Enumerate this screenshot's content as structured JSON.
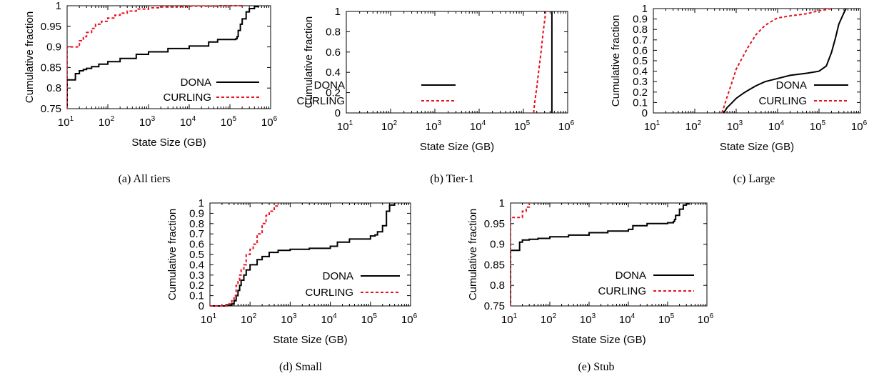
{
  "figure": {
    "legend_dona": "DONA",
    "legend_curling": "CURLING",
    "colors": {
      "dona": "#000000",
      "curling": "#e8111f"
    }
  },
  "chart_data": [
    {
      "id": "a",
      "type": "line",
      "caption": "(a)  All tiers",
      "xlabel": "State Size (GB)",
      "ylabel": "Cumulative fraction",
      "xscale": "log",
      "xlim": [
        10,
        1000000
      ],
      "ylim": [
        0.75,
        1
      ],
      "xtick_exponents": [
        "1",
        "2",
        "3",
        "4",
        "5",
        "6"
      ],
      "yticks": [
        "0.75",
        "0.8",
        "0.85",
        "0.9",
        "0.95",
        "1"
      ],
      "legend_position": "bottom-right",
      "grid": false,
      "series": [
        {
          "name": "DONA",
          "style": "solid",
          "step": true,
          "x": [
            10,
            10,
            16,
            16,
            20,
            20,
            25,
            30,
            40,
            60,
            100,
            200,
            500,
            1000,
            3000,
            10000,
            30000,
            50000,
            140000,
            150000,
            160000,
            180000,
            200000,
            250000,
            300000,
            400000,
            500000
          ],
          "y": [
            0.75,
            0.82,
            0.82,
            0.835,
            0.835,
            0.842,
            0.845,
            0.848,
            0.852,
            0.858,
            0.864,
            0.872,
            0.882,
            0.888,
            0.896,
            0.902,
            0.912,
            0.918,
            0.92,
            0.925,
            0.94,
            0.955,
            0.968,
            0.985,
            0.993,
            0.998,
            1.0
          ]
        },
        {
          "name": "CURLING",
          "style": "dashed",
          "step": true,
          "x": [
            10,
            10,
            20,
            20,
            25,
            30,
            40,
            50,
            70,
            100,
            150,
            200,
            300,
            500,
            1000,
            2000,
            5000,
            10000,
            50000,
            100000,
            200000
          ],
          "y": [
            0.75,
            0.9,
            0.9,
            0.915,
            0.925,
            0.935,
            0.945,
            0.955,
            0.962,
            0.97,
            0.977,
            0.982,
            0.987,
            0.992,
            0.995,
            0.997,
            0.998,
            0.999,
            1.0,
            1.0,
            1.0
          ]
        }
      ]
    },
    {
      "id": "b",
      "type": "line",
      "caption": "(b)  Tier-1",
      "xlabel": "State Size (GB)",
      "ylabel": "Cumulative fraction",
      "xscale": "log",
      "xlim": [
        10,
        1000000
      ],
      "ylim": [
        0,
        1
      ],
      "xtick_exponents": [
        "1",
        "2",
        "3",
        "4",
        "5",
        "6"
      ],
      "yticks": [
        "0",
        "0.2",
        "0.4",
        "0.6",
        "0.8",
        "1"
      ],
      "legend_position": "center-left",
      "grid": false,
      "series": [
        {
          "name": "DONA",
          "style": "solid",
          "step": true,
          "x": [
            440000,
            440000
          ],
          "y": [
            0,
            1
          ]
        },
        {
          "name": "CURLING",
          "style": "dashed",
          "step": false,
          "x": [
            170000,
            180000,
            200000,
            220000,
            250000,
            280000,
            300000,
            320000
          ],
          "y": [
            0,
            0.1,
            0.25,
            0.4,
            0.6,
            0.8,
            0.9,
            1.0
          ]
        }
      ]
    },
    {
      "id": "c",
      "type": "line",
      "caption": "(c)  Large",
      "xlabel": "State Size (GB)",
      "ylabel": "Cumulative fraction",
      "xscale": "log",
      "xlim": [
        10,
        1000000
      ],
      "ylim": [
        0,
        1
      ],
      "xtick_exponents": [
        "1",
        "2",
        "3",
        "4",
        "5",
        "6"
      ],
      "yticks": [
        "0",
        "0.1",
        "0.2",
        "0.3",
        "0.4",
        "0.5",
        "0.6",
        "0.7",
        "0.8",
        "0.9",
        "1"
      ],
      "legend_position": "bottom-right",
      "grid": false,
      "series": [
        {
          "name": "DONA",
          "style": "solid",
          "step": false,
          "x": [
            500,
            600,
            800,
            1000,
            1500,
            2000,
            3000,
            5000,
            10000,
            20000,
            50000,
            100000,
            150000,
            200000,
            250000,
            300000,
            400000,
            450000
          ],
          "y": [
            0,
            0.05,
            0.1,
            0.14,
            0.19,
            0.22,
            0.26,
            0.3,
            0.33,
            0.36,
            0.38,
            0.4,
            0.45,
            0.58,
            0.72,
            0.85,
            0.96,
            1.0
          ]
        },
        {
          "name": "CURLING",
          "style": "dashed",
          "step": false,
          "x": [
            450,
            500,
            600,
            800,
            1000,
            1500,
            2000,
            3000,
            5000,
            8000,
            10000,
            20000,
            50000,
            100000,
            150000,
            200000
          ],
          "y": [
            0,
            0.05,
            0.15,
            0.3,
            0.42,
            0.55,
            0.64,
            0.75,
            0.84,
            0.89,
            0.91,
            0.93,
            0.95,
            0.98,
            0.99,
            1.0
          ]
        }
      ]
    },
    {
      "id": "d",
      "type": "line",
      "caption": "(d)  Small",
      "xlabel": "State Size (GB)",
      "ylabel": "Cumulative fraction",
      "xscale": "log",
      "xlim": [
        10,
        1000000
      ],
      "ylim": [
        0,
        1
      ],
      "xtick_exponents": [
        "1",
        "2",
        "3",
        "4",
        "5",
        "6"
      ],
      "yticks": [
        "0",
        "0.1",
        "0.2",
        "0.3",
        "0.4",
        "0.5",
        "0.6",
        "0.7",
        "0.8",
        "0.9",
        "1"
      ],
      "legend_position": "center-right",
      "grid": false,
      "series": [
        {
          "name": "DONA",
          "style": "solid",
          "step": true,
          "x": [
            10,
            20,
            25,
            30,
            35,
            40,
            45,
            50,
            55,
            60,
            70,
            80,
            100,
            150,
            200,
            300,
            500,
            1000,
            3000,
            10000,
            15000,
            30000,
            100000,
            130000,
            150000,
            200000,
            250000,
            300000,
            400000
          ],
          "y": [
            0,
            0,
            0.01,
            0.01,
            0.02,
            0.05,
            0.1,
            0.15,
            0.2,
            0.25,
            0.3,
            0.35,
            0.4,
            0.45,
            0.48,
            0.52,
            0.54,
            0.55,
            0.56,
            0.58,
            0.62,
            0.65,
            0.68,
            0.69,
            0.72,
            0.78,
            0.92,
            0.98,
            1.0
          ]
        },
        {
          "name": "CURLING",
          "style": "dashed",
          "step": true,
          "x": [
            10,
            20,
            30,
            35,
            40,
            45,
            50,
            55,
            60,
            70,
            80,
            100,
            120,
            150,
            200,
            250,
            300,
            400,
            500
          ],
          "y": [
            0,
            0,
            0.02,
            0.05,
            0.1,
            0.2,
            0.25,
            0.3,
            0.35,
            0.4,
            0.5,
            0.55,
            0.6,
            0.7,
            0.8,
            0.88,
            0.92,
            0.97,
            1.0
          ]
        }
      ]
    },
    {
      "id": "e",
      "type": "line",
      "caption": "(e)  Stub",
      "xlabel": "State Size (GB)",
      "ylabel": "Cumulative fraction",
      "xscale": "log",
      "xlim": [
        10,
        1000000
      ],
      "ylim": [
        0.75,
        1
      ],
      "xtick_exponents": [
        "1",
        "2",
        "3",
        "4",
        "5",
        "6"
      ],
      "yticks": [
        "0.75",
        "0.8",
        "0.85",
        "0.9",
        "0.95",
        "1"
      ],
      "legend_position": "bottom-right",
      "grid": false,
      "series": [
        {
          "name": "DONA",
          "style": "solid",
          "step": true,
          "x": [
            10,
            10,
            17,
            17,
            20,
            30,
            50,
            100,
            300,
            1000,
            3000,
            10000,
            13000,
            30000,
            100000,
            140000,
            150000,
            160000,
            200000,
            250000,
            300000,
            350000
          ],
          "y": [
            0.75,
            0.885,
            0.885,
            0.905,
            0.91,
            0.912,
            0.914,
            0.918,
            0.922,
            0.928,
            0.932,
            0.936,
            0.945,
            0.95,
            0.952,
            0.955,
            0.96,
            0.97,
            0.985,
            0.995,
            0.998,
            1.0
          ]
        },
        {
          "name": "CURLING",
          "style": "dashed",
          "step": true,
          "x": [
            10,
            10,
            20,
            20,
            25,
            30,
            30
          ],
          "y": [
            0.75,
            0.965,
            0.965,
            0.98,
            0.99,
            0.995,
            1.0
          ]
        }
      ]
    }
  ]
}
